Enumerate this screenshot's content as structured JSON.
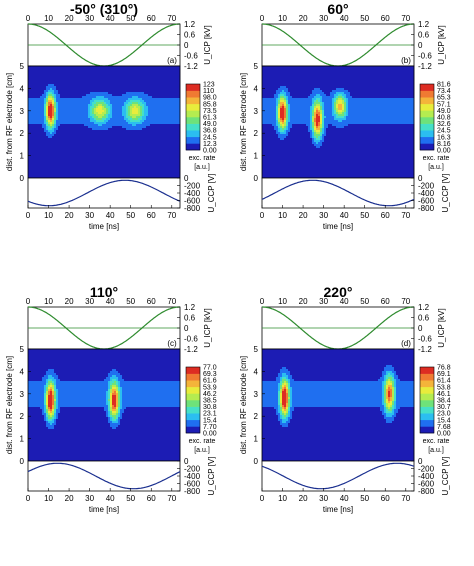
{
  "chart_data": {
    "type": "heatmap",
    "x_label": "time [ns]",
    "y_label": "dist. from RF electrode [cm]",
    "x_ticks": [
      "0",
      "10",
      "20",
      "30",
      "40",
      "50",
      "60",
      "70"
    ],
    "y_ticks": [
      "0",
      "1",
      "2",
      "3",
      "4",
      "5"
    ],
    "xlim": [
      0,
      74
    ],
    "ylim": [
      0,
      5
    ],
    "top_ylabel": "U_ICP [kV]",
    "top_ticks": [
      "1.2",
      "0.6",
      "0",
      "-0.6",
      "-1.2"
    ],
    "top_ylim": [
      -1.2,
      1.2
    ],
    "bottom_ylabel": "U_CCP [V]",
    "bottom_ticks": [
      "0",
      "-200",
      "-400",
      "-600",
      "-800"
    ],
    "bottom_ylim": [
      -800,
      0
    ],
    "colorbar_title": "exc. rate",
    "colorbar_units": "[a.u.]",
    "panels": [
      {
        "title": "-50° (310°)",
        "letter": "(a)",
        "colorbar_labels": [
          "0.00",
          "12.3",
          "24.5",
          "36.8",
          "49.0",
          "61.3",
          "73.5",
          "85.8",
          "98.0",
          "110",
          "123"
        ],
        "peaks": [
          {
            "t": 11,
            "z": 3.0,
            "amp": 1.0,
            "st": 2.2,
            "sz": 0.7
          },
          {
            "t": 35,
            "z": 3.0,
            "amp": 0.55,
            "st": 4.5,
            "sz": 0.5
          },
          {
            "t": 52,
            "z": 3.0,
            "amp": 0.55,
            "st": 4.5,
            "sz": 0.5
          }
        ],
        "ccp_phase_deg": 310
      },
      {
        "title": "60°",
        "letter": "(b)",
        "colorbar_labels": [
          "0.00",
          "8.16",
          "16.3",
          "24.5",
          "32.6",
          "40.8",
          "49.0",
          "57.1",
          "65.3",
          "73.4",
          "81.6"
        ],
        "peaks": [
          {
            "t": 10,
            "z": 2.9,
            "amp": 1.0,
            "st": 2.2,
            "sz": 0.7
          },
          {
            "t": 27,
            "z": 2.6,
            "amp": 0.9,
            "st": 2.4,
            "sz": 0.8
          },
          {
            "t": 38,
            "z": 3.2,
            "amp": 0.65,
            "st": 3.0,
            "sz": 0.5
          }
        ],
        "ccp_phase_deg": 60
      },
      {
        "title": "110°",
        "letter": "(c)",
        "colorbar_labels": [
          "0.00",
          "7.70",
          "15.4",
          "23.1",
          "30.8",
          "38.5",
          "46.2",
          "53.9",
          "61.6",
          "69.3",
          "77.0"
        ],
        "peaks": [
          {
            "t": 11,
            "z": 2.7,
            "amp": 1.0,
            "st": 2.2,
            "sz": 0.8
          },
          {
            "t": 42,
            "z": 2.7,
            "amp": 0.9,
            "st": 2.4,
            "sz": 0.8
          }
        ],
        "ccp_phase_deg": 110
      },
      {
        "title": "220°",
        "letter": "(d)",
        "colorbar_labels": [
          "0.00",
          "7.68",
          "15.4",
          "23.0",
          "30.7",
          "38.4",
          "46.1",
          "53.8",
          "61.4",
          "69.1",
          "76.8"
        ],
        "peaks": [
          {
            "t": 11,
            "z": 2.8,
            "amp": 1.0,
            "st": 2.2,
            "sz": 0.8
          },
          {
            "t": 62,
            "z": 3.0,
            "amp": 0.8,
            "st": 2.4,
            "sz": 0.8
          }
        ],
        "ccp_phase_deg": 220
      }
    ]
  },
  "colors": {
    "icp_line": "#2e8b2e",
    "ccp_line": "#1a2f8f",
    "levels": [
      "#1c1cb4",
      "#1f6ff0",
      "#2bbef0",
      "#45e0c8",
      "#6ee27a",
      "#b4ec50",
      "#e8ec3c",
      "#f4b43a",
      "#f07a32",
      "#dd2c22",
      "#000000"
    ]
  }
}
